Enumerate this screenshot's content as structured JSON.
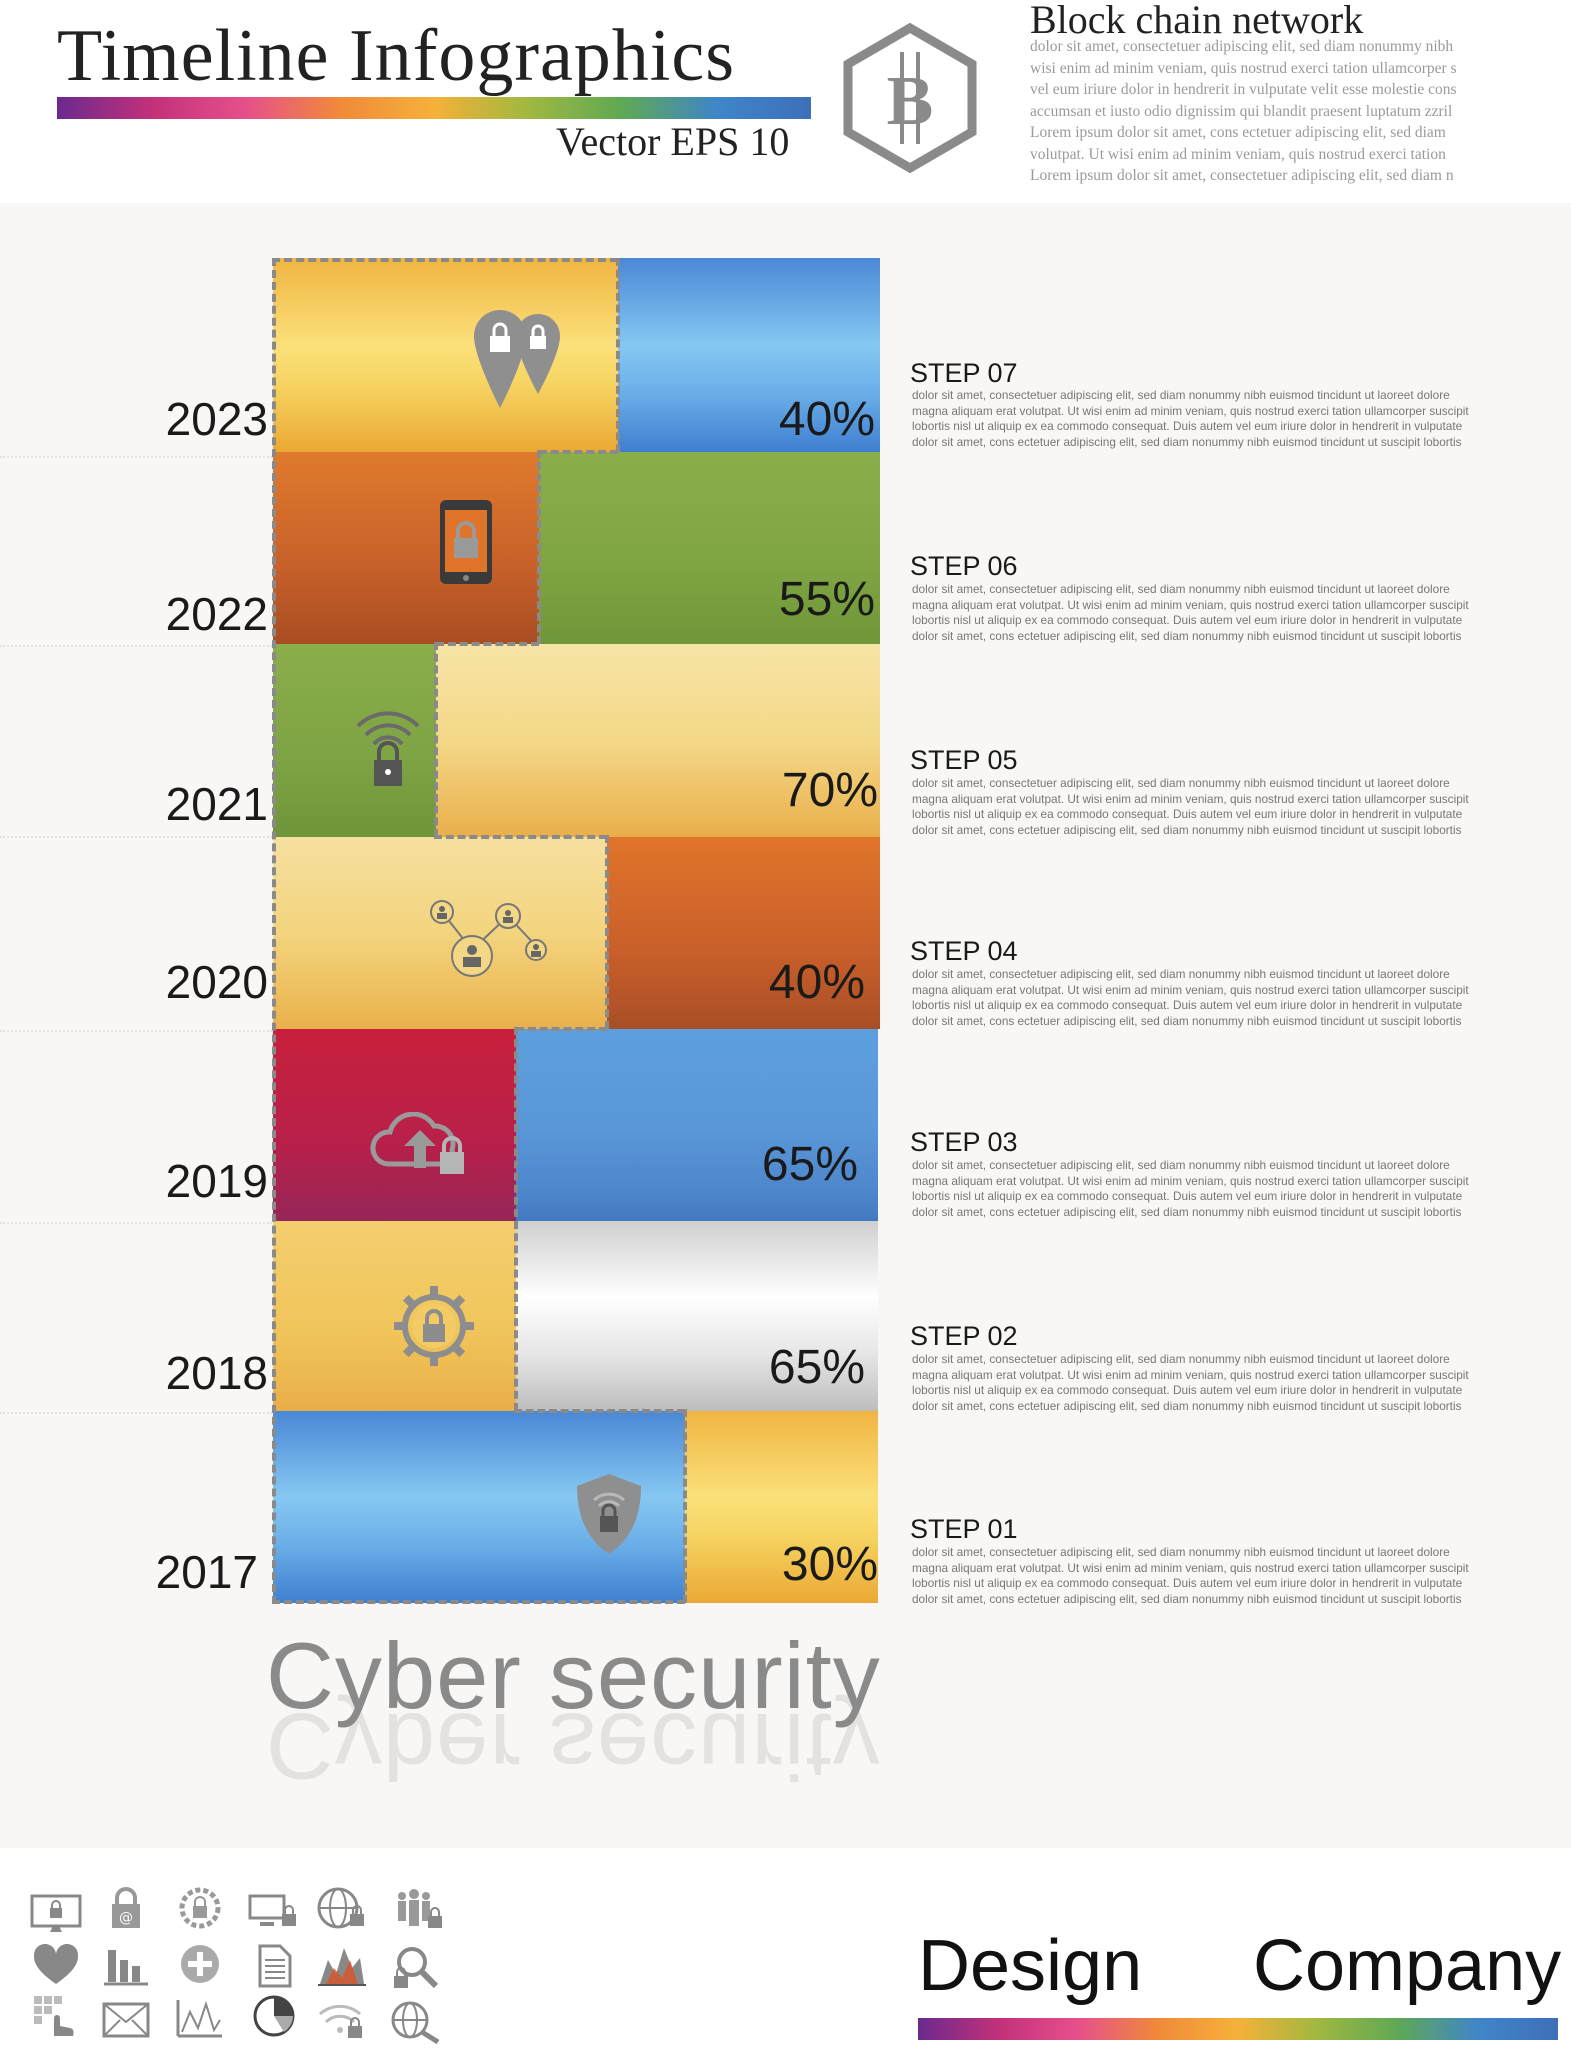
{
  "header": {
    "title": "Timeline  Infographics",
    "subtitle": "Vector  EPS 10",
    "logo_icon": "bitcoin-hexagon-icon"
  },
  "blockchain": {
    "title": "Block chain network",
    "lines": [
      "dolor sit amet, consectetuer adipiscing elit, sed diam nonummy nibh",
      "wisi enim ad minim veniam, quis nostrud exerci tation ullamcorper s",
      "vel eum iriure dolor in hendrerit in vulputate velit esse molestie cons",
      "accumsan et iusto odio dignissim qui blandit praesent luptatum zzril",
      "Lorem ipsum dolor sit amet, cons ectetuer adipiscing elit, sed diam",
      "volutpat. Ut wisi enim ad minim veniam, quis nostrud exerci tation",
      "Lorem ipsum dolor sit amet, consectetuer adipiscing elit, sed diam n"
    ]
  },
  "rows": [
    {
      "year": "2023",
      "percent": "40%",
      "step": "STEP  07",
      "icon": "location-lock-icon"
    },
    {
      "year": "2022",
      "percent": "55%",
      "step": "STEP  06",
      "icon": "phone-lock-icon"
    },
    {
      "year": "2021",
      "percent": "70%",
      "step": "STEP  05",
      "icon": "wifi-lock-icon"
    },
    {
      "year": "2020",
      "percent": "40%",
      "step": "STEP  04",
      "icon": "network-users-icon"
    },
    {
      "year": "2019",
      "percent": "65%",
      "step": "STEP  03",
      "icon": "cloud-upload-lock-icon"
    },
    {
      "year": "2018",
      "percent": "65%",
      "step": "STEP  02",
      "icon": "gear-lock-icon"
    },
    {
      "year": "2017",
      "percent": "30%",
      "step": "STEP  01",
      "icon": "shield-wifi-lock-icon"
    }
  ],
  "step_lines": [
    "dolor sit amet, consectetuer adipiscing elit, sed diam nonummy nibh euismod tincidunt ut laoreet dolore",
    "magna aliquam erat volutpat. Ut wisi enim ad minim veniam, quis nostrud exerci tation ullamcorper suscipit",
    "lobortis nisl ut aliquip ex ea commodo consequat. Duis autem vel eum iriure dolor in hendrerit in vulputate",
    "dolor sit amet, cons ectetuer adipiscing elit, sed diam nonummy nibh euismod tincidunt ut suscipit lobortis"
  ],
  "main_label": "Cyber security",
  "footer": {
    "design": "Design",
    "company": "Company"
  },
  "small_icons": [
    "monitor-lock-icon",
    "lock-at-icon",
    "gear-lock-icon",
    "devices-lock-icon",
    "globe-lock-icon",
    "group-lock-icon",
    "heart-icon",
    "bar-chart-icon",
    "pie-plus-icon",
    "document-icon",
    "area-chart-icon",
    "search-lock-icon",
    "grid-hand-icon",
    "envelope-icon",
    "line-chart-icon",
    "pie-chart-icon",
    "wifi-lock-icon",
    "globe-search-icon"
  ],
  "colors": {
    "yellow": "#f2c24a",
    "blue": "#5a9be0",
    "orange": "#d9692a",
    "green": "#84a84a",
    "light_yellow": "#f3d98a",
    "crimson": "#c0203e",
    "silver": "#dcdcdc"
  }
}
